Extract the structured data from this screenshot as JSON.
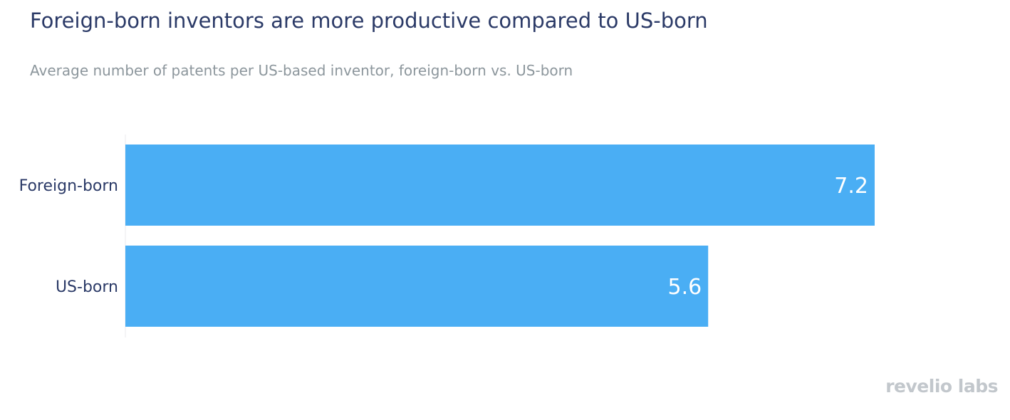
{
  "chart_data": {
    "type": "bar",
    "orientation": "horizontal",
    "title": "Foreign-born inventors are more productive compared to US-born",
    "subtitle": "Average number of patents per US-based inventor, foreign-born vs. US-born",
    "categories": [
      "Foreign-born",
      "US-born"
    ],
    "values": [
      7.2,
      5.6
    ],
    "data_labels": [
      "7.2",
      "5.6"
    ],
    "xlabel": "",
    "ylabel": "",
    "xlim": [
      0,
      7.2
    ],
    "grid": false,
    "legend": "none",
    "bar_color": "#4aaef4"
  },
  "colors": {
    "title": "#2b3a67",
    "subtitle": "#8c969c",
    "category_label": "#2b3a67",
    "data_label": "#ffffff",
    "logo": "#c2c7cc"
  },
  "branding": {
    "logo_text": "revelio labs"
  }
}
